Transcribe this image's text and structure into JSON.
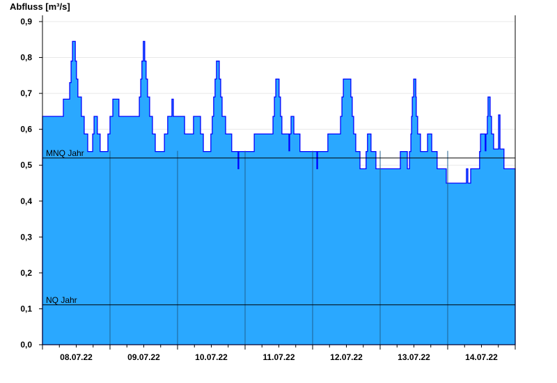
{
  "chart_data": {
    "type": "area",
    "ylabel": "Abfluss [m³/s]",
    "ylim": [
      0,
      0.9
    ],
    "xlim": [
      "2022-07-08T00:00",
      "2022-07-15T00:00"
    ],
    "grid": true,
    "yticks": [
      "0,0",
      "0,1",
      "0,2",
      "0,3",
      "0,4",
      "0,5",
      "0,6",
      "0,7",
      "0,8",
      "0,9"
    ],
    "xticks": [
      "08.07.22",
      "09.07.22",
      "10.07.22",
      "11.07.22",
      "12.07.22",
      "13.07.22",
      "14.07.22"
    ],
    "fill_color": "#2aa8ff",
    "line_color": "#0000ff",
    "reference_lines": [
      {
        "label": "MNQ Jahr",
        "value": 0.52
      },
      {
        "label": "NQ Jahr",
        "value": 0.111
      }
    ],
    "step": "after",
    "points": [
      [
        "2022-07-08T00:00",
        0.636
      ],
      [
        "2022-07-08T07:25",
        0.684
      ],
      [
        "2022-07-08T09:40",
        0.73
      ],
      [
        "2022-07-08T10:10",
        0.79
      ],
      [
        "2022-07-08T10:40",
        0.845
      ],
      [
        "2022-07-08T11:40",
        0.79
      ],
      [
        "2022-07-08T12:05",
        0.74
      ],
      [
        "2022-07-08T12:35",
        0.69
      ],
      [
        "2022-07-08T13:50",
        0.636
      ],
      [
        "2022-07-08T14:50",
        0.587
      ],
      [
        "2022-07-08T16:05",
        0.538
      ],
      [
        "2022-07-08T17:50",
        0.587
      ],
      [
        "2022-07-08T18:20",
        0.636
      ],
      [
        "2022-07-08T19:30",
        0.587
      ],
      [
        "2022-07-08T20:30",
        0.538
      ],
      [
        "2022-07-08T23:15",
        0.587
      ],
      [
        "2022-07-09T00:00",
        0.636
      ],
      [
        "2022-07-09T01:00",
        0.684
      ],
      [
        "2022-07-09T03:10",
        0.636
      ],
      [
        "2022-07-09T10:25",
        0.69
      ],
      [
        "2022-07-09T10:55",
        0.74
      ],
      [
        "2022-07-09T11:20",
        0.79
      ],
      [
        "2022-07-09T11:50",
        0.845
      ],
      [
        "2022-07-09T12:20",
        0.79
      ],
      [
        "2022-07-09T12:50",
        0.74
      ],
      [
        "2022-07-09T13:20",
        0.69
      ],
      [
        "2022-07-09T14:05",
        0.636
      ],
      [
        "2022-07-09T15:05",
        0.587
      ],
      [
        "2022-07-09T16:05",
        0.538
      ],
      [
        "2022-07-09T19:20",
        0.587
      ],
      [
        "2022-07-09T20:30",
        0.636
      ],
      [
        "2022-07-09T22:00",
        0.684
      ],
      [
        "2022-07-09T22:30",
        0.636
      ],
      [
        "2022-07-10T02:30",
        0.587
      ],
      [
        "2022-07-10T05:40",
        0.636
      ],
      [
        "2022-07-10T08:10",
        0.587
      ],
      [
        "2022-07-10T09:10",
        0.538
      ],
      [
        "2022-07-10T11:50",
        0.587
      ],
      [
        "2022-07-10T12:20",
        0.636
      ],
      [
        "2022-07-10T12:50",
        0.69
      ],
      [
        "2022-07-10T13:20",
        0.74
      ],
      [
        "2022-07-10T13:50",
        0.79
      ],
      [
        "2022-07-10T14:50",
        0.74
      ],
      [
        "2022-07-10T15:20",
        0.69
      ],
      [
        "2022-07-10T15:50",
        0.636
      ],
      [
        "2022-07-10T17:05",
        0.587
      ],
      [
        "2022-07-10T19:15",
        0.538
      ],
      [
        "2022-07-10T21:30",
        0.49
      ],
      [
        "2022-07-10T21:45",
        0.538
      ],
      [
        "2022-07-11T03:15",
        0.587
      ],
      [
        "2022-07-11T09:55",
        0.636
      ],
      [
        "2022-07-11T10:25",
        0.69
      ],
      [
        "2022-07-11T10:55",
        0.74
      ],
      [
        "2022-07-11T12:05",
        0.69
      ],
      [
        "2022-07-11T12:35",
        0.636
      ],
      [
        "2022-07-11T13:05",
        0.587
      ],
      [
        "2022-07-11T15:35",
        0.54
      ],
      [
        "2022-07-11T15:50",
        0.587
      ],
      [
        "2022-07-11T16:20",
        0.636
      ],
      [
        "2022-07-11T17:20",
        0.587
      ],
      [
        "2022-07-11T19:30",
        0.538
      ],
      [
        "2022-07-12T01:30",
        0.49
      ],
      [
        "2022-07-12T01:45",
        0.538
      ],
      [
        "2022-07-12T05:25",
        0.587
      ],
      [
        "2022-07-12T09:55",
        0.636
      ],
      [
        "2022-07-12T10:25",
        0.69
      ],
      [
        "2022-07-12T10:55",
        0.74
      ],
      [
        "2022-07-12T13:35",
        0.69
      ],
      [
        "2022-07-12T14:05",
        0.636
      ],
      [
        "2022-07-12T14:35",
        0.587
      ],
      [
        "2022-07-12T15:20",
        0.538
      ],
      [
        "2022-07-12T16:50",
        0.49
      ],
      [
        "2022-07-12T19:00",
        0.538
      ],
      [
        "2022-07-12T19:30",
        0.587
      ],
      [
        "2022-07-12T20:45",
        0.538
      ],
      [
        "2022-07-12T22:30",
        0.49
      ],
      [
        "2022-07-13T07:10",
        0.538
      ],
      [
        "2022-07-13T09:40",
        0.49
      ],
      [
        "2022-07-13T10:25",
        0.538
      ],
      [
        "2022-07-13T10:55",
        0.587
      ],
      [
        "2022-07-13T11:10",
        0.636
      ],
      [
        "2022-07-13T11:25",
        0.69
      ],
      [
        "2022-07-13T11:55",
        0.74
      ],
      [
        "2022-07-13T12:40",
        0.69
      ],
      [
        "2022-07-13T12:50",
        0.636
      ],
      [
        "2022-07-13T13:20",
        0.587
      ],
      [
        "2022-07-13T14:20",
        0.538
      ],
      [
        "2022-07-13T16:50",
        0.587
      ],
      [
        "2022-07-13T18:20",
        0.538
      ],
      [
        "2022-07-13T20:15",
        0.49
      ],
      [
        "2022-07-13T23:30",
        0.45
      ],
      [
        "2022-07-14T06:40",
        0.49
      ],
      [
        "2022-07-14T07:10",
        0.45
      ],
      [
        "2022-07-14T08:10",
        0.49
      ],
      [
        "2022-07-14T11:20",
        0.538
      ],
      [
        "2022-07-14T11:40",
        0.587
      ],
      [
        "2022-07-14T13:20",
        0.54
      ],
      [
        "2022-07-14T13:35",
        0.587
      ],
      [
        "2022-07-14T14:05",
        0.636
      ],
      [
        "2022-07-14T14:20",
        0.69
      ],
      [
        "2022-07-14T15:05",
        0.636
      ],
      [
        "2022-07-14T15:35",
        0.587
      ],
      [
        "2022-07-14T16:20",
        0.545
      ],
      [
        "2022-07-14T18:05",
        0.64
      ],
      [
        "2022-07-14T18:35",
        0.545
      ],
      [
        "2022-07-14T20:00",
        0.49
      ],
      [
        "2022-07-15T00:00",
        0.49
      ]
    ]
  }
}
